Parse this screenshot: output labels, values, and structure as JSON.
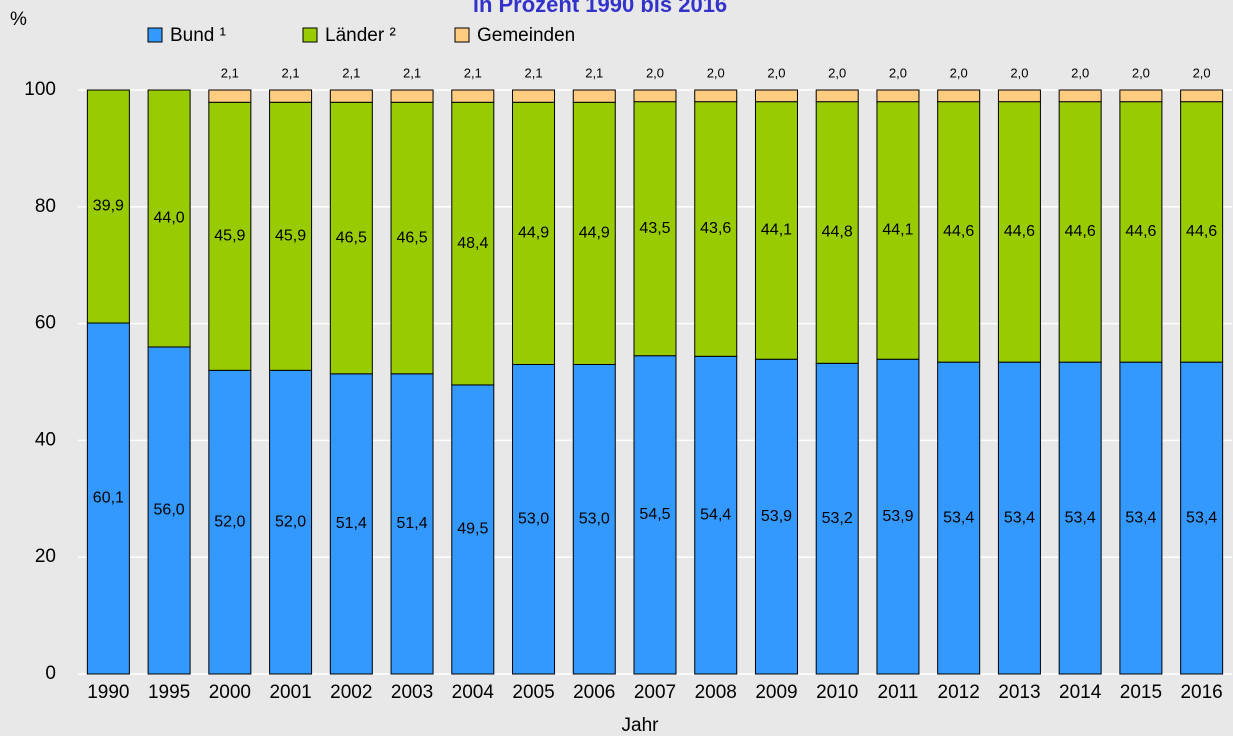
{
  "chart_data": {
    "type": "stacked_bar",
    "title": "in Prozent 1990 bis 2016",
    "y_label": "%",
    "x_label": "Jahr",
    "categories": [
      "1990",
      "1995",
      "2000",
      "2001",
      "2002",
      "2003",
      "2004",
      "2005",
      "2006",
      "2007",
      "2008",
      "2009",
      "2010",
      "2011",
      "2012",
      "2013",
      "2014",
      "2015",
      "2016"
    ],
    "series": [
      {
        "name": "Bund ¹",
        "color": "#3399ff",
        "values": [
          60.1,
          56.0,
          52.0,
          52.0,
          51.4,
          51.4,
          49.5,
          53.0,
          53.0,
          54.5,
          54.4,
          53.9,
          53.2,
          53.9,
          53.4,
          53.4,
          53.4,
          53.4,
          53.4
        ],
        "value_labels": [
          "60,1",
          "56,0",
          "52,0",
          "52,0",
          "51,4",
          "51,4",
          "49,5",
          "53,0",
          "53,0",
          "54,5",
          "54,4",
          "53,9",
          "53,2",
          "53,9",
          "53,4",
          "53,4",
          "53,4",
          "53,4",
          "53,4"
        ]
      },
      {
        "name": "Länder ²",
        "color": "#99cc00",
        "values": [
          39.9,
          44.0,
          45.9,
          45.9,
          46.5,
          46.5,
          48.4,
          44.9,
          44.9,
          43.5,
          43.6,
          44.1,
          44.8,
          44.1,
          44.6,
          44.6,
          44.6,
          44.6,
          44.6
        ],
        "value_labels": [
          "39,9",
          "44,0",
          "45,9",
          "45,9",
          "46,5",
          "46,5",
          "48,4",
          "44,9",
          "44,9",
          "43,5",
          "43,6",
          "44,1",
          "44,8",
          "44,1",
          "44,6",
          "44,6",
          "44,6",
          "44,6",
          "44,6"
        ]
      },
      {
        "name": "Gemeinden",
        "color": "#ffcc80",
        "values": [
          null,
          null,
          2.1,
          2.1,
          2.1,
          2.1,
          2.1,
          2.1,
          2.1,
          2.0,
          2.0,
          2.0,
          2.0,
          2.0,
          2.0,
          2.0,
          2.0,
          2.0,
          2.0
        ],
        "value_labels": [
          null,
          null,
          "2,1",
          "2,1",
          "2,1",
          "2,1",
          "2,1",
          "2,1",
          "2,1",
          "2,0",
          "2,0",
          "2,0",
          "2,0",
          "2,0",
          "2,0",
          "2,0",
          "2,0",
          "2,0",
          "2,0"
        ],
        "label_position": "above"
      }
    ],
    "ylim": [
      0,
      100
    ],
    "yticks": [
      0,
      20,
      40,
      60,
      80,
      100
    ],
    "grid": true
  }
}
